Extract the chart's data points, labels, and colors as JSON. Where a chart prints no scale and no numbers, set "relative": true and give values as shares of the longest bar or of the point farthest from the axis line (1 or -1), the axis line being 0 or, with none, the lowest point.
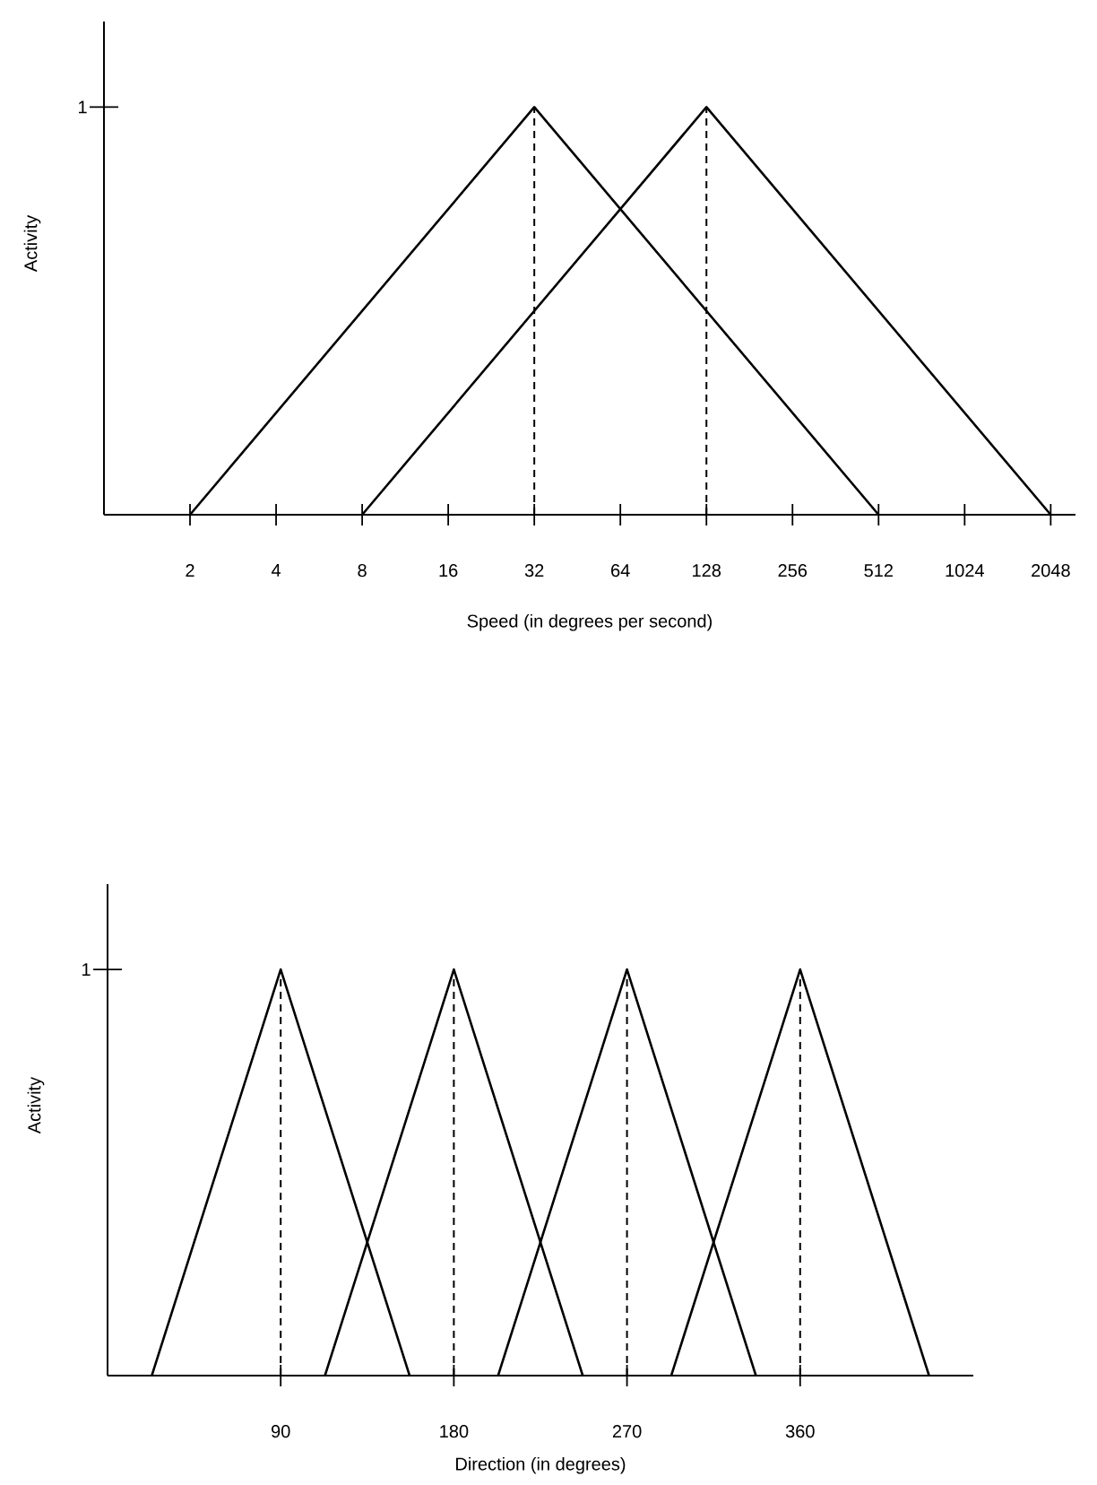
{
  "chart_data": [
    {
      "type": "line",
      "xlabel": "Speed (in degrees per second)",
      "ylabel": "Activity",
      "relative": true,
      "log": "x",
      "xlim": [
        1,
        2500
      ],
      "xticks": [
        2,
        4,
        8,
        16,
        32,
        64,
        128,
        256,
        512,
        1024,
        2048
      ],
      "annotations": [
        "1"
      ],
      "series": [
        {
          "color": "#000000",
          "x": [
            2,
            32,
            512
          ],
          "values": [
            0,
            1,
            0
          ]
        },
        {
          "color": "#000000",
          "x": [
            8,
            128,
            2048
          ],
          "values": [
            0,
            1,
            0
          ]
        }
      ],
      "ref_lines": [
        {
          "axis": "x",
          "value": 32,
          "line_style": "dashed",
          "color": "#000000"
        },
        {
          "axis": "x",
          "value": 128,
          "line_style": "dashed",
          "color": "#000000"
        }
      ]
    },
    {
      "type": "line",
      "xlabel": "Direction (in degrees)",
      "ylabel": "Activity",
      "relative": true,
      "xlim": [
        0,
        450
      ],
      "xticks": [
        90,
        180,
        270,
        360
      ],
      "annotations": [
        "1"
      ],
      "series": [
        {
          "color": "#000000",
          "x": [
            23,
            90,
            157
          ],
          "values": [
            0,
            1,
            0
          ]
        },
        {
          "color": "#000000",
          "x": [
            113,
            180,
            247
          ],
          "values": [
            0,
            1,
            0
          ]
        },
        {
          "color": "#000000",
          "x": [
            203,
            270,
            337
          ],
          "values": [
            0,
            1,
            0
          ]
        },
        {
          "color": "#000000",
          "x": [
            293,
            360,
            427
          ],
          "values": [
            0,
            1,
            0
          ]
        }
      ],
      "ref_lines": [
        {
          "axis": "x",
          "value": 90,
          "line_style": "dashed",
          "color": "#000000"
        },
        {
          "axis": "x",
          "value": 180,
          "line_style": "dashed",
          "color": "#000000"
        },
        {
          "axis": "x",
          "value": 270,
          "line_style": "dashed",
          "color": "#000000"
        },
        {
          "axis": "x",
          "value": 360,
          "line_style": "dashed",
          "color": "#000000"
        }
      ]
    }
  ]
}
